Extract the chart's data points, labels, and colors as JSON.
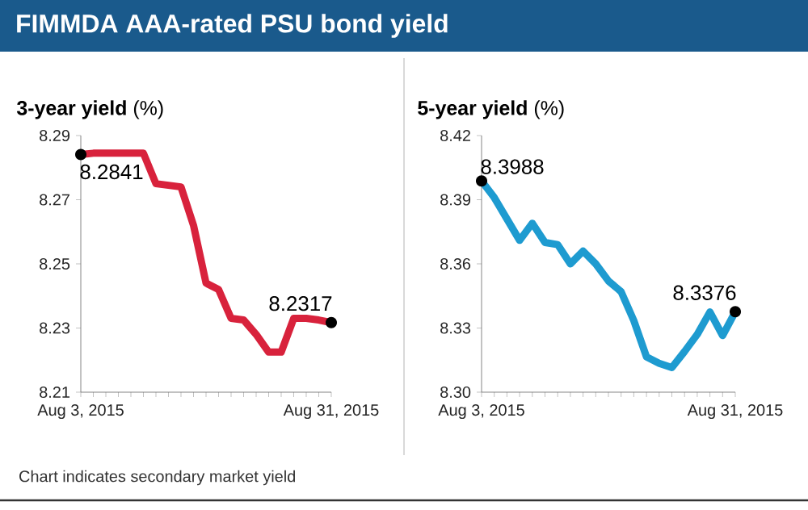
{
  "chart_data": [
    {
      "type": "line",
      "title": "FIMMDA AAA-rated PSU bond yield",
      "subtitle": "**3-year yield** (%)",
      "categories": [
        "Aug 3, 2015",
        null,
        null,
        null,
        null,
        null,
        null,
        null,
        null,
        null,
        null,
        null,
        null,
        null,
        null,
        null,
        null,
        null,
        null,
        null,
        "Aug 31, 2015"
      ],
      "series": [
        {
          "color": "#d8223c",
          "values": [
            8.2841,
            8.2845,
            8.2845,
            8.2845,
            8.2845,
            8.2845,
            8.275,
            8.2745,
            8.274,
            8.262,
            8.244,
            8.242,
            8.233,
            8.2325,
            8.228,
            8.2225,
            8.2225,
            8.233,
            8.233,
            8.2325,
            8.2317
          ],
          "value_labels": [
            "8.2841",
            null,
            null,
            null,
            null,
            null,
            null,
            null,
            null,
            null,
            null,
            null,
            null,
            null,
            null,
            null,
            null,
            null,
            null,
            null,
            "8.2317"
          ]
        }
      ],
      "ylim": [
        8.21,
        8.29
      ],
      "yticks": [
        8.21,
        8.23,
        8.25,
        8.27,
        8.29
      ],
      "annotations": [
        "Chart indicates secondary market yield"
      ]
    },
    {
      "type": "line",
      "subtitle": "**5-year yield** (%)",
      "categories": [
        "Aug 3, 2015",
        null,
        null,
        null,
        null,
        null,
        null,
        null,
        null,
        null,
        null,
        null,
        null,
        null,
        null,
        null,
        null,
        null,
        null,
        null,
        "Aug 31, 2015"
      ],
      "series": [
        {
          "color": "#1e9bd0",
          "values": [
            8.3988,
            8.391,
            8.381,
            8.371,
            8.379,
            8.37,
            8.369,
            8.36,
            8.366,
            8.36,
            8.352,
            8.347,
            8.3335,
            8.3165,
            8.3135,
            8.3115,
            8.319,
            8.327,
            8.3375,
            8.3265,
            8.3376
          ],
          "value_labels": [
            "8.3988",
            null,
            null,
            null,
            null,
            null,
            null,
            null,
            null,
            null,
            null,
            null,
            null,
            null,
            null,
            null,
            null,
            null,
            null,
            null,
            "8.3376"
          ]
        }
      ],
      "ylim": [
        8.3,
        8.42
      ],
      "yticks": [
        {
          "value": 8.3,
          "label": "8.30"
        },
        8.33,
        8.36,
        8.39,
        8.42
      ]
    }
  ]
}
